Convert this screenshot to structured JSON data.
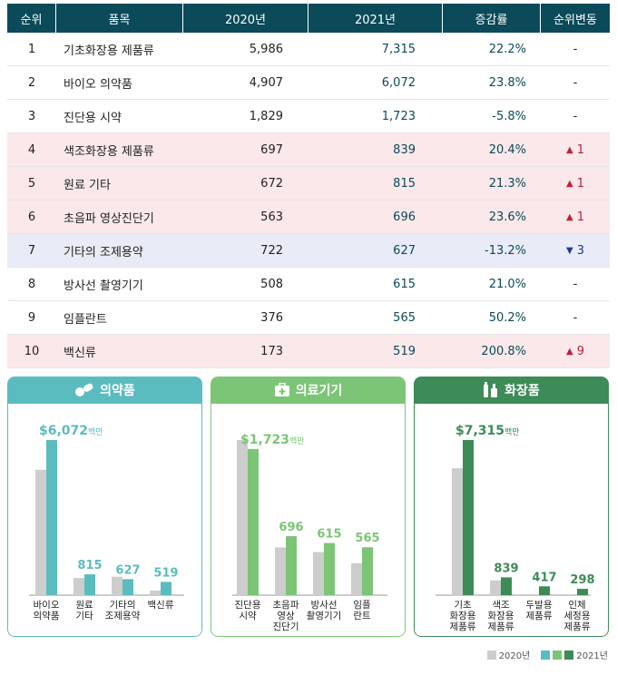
{
  "table": {
    "headers": [
      "순위",
      "품목",
      "2020년",
      "2021년",
      "증감률",
      "순위변동"
    ],
    "rows": [
      {
        "rank": "1",
        "name": "기초화장용 제품류",
        "y2020": "5,986",
        "y2021": "7,315",
        "rate": "22.2%",
        "change": "-",
        "dir": "none"
      },
      {
        "rank": "2",
        "name": "바이오 의약품",
        "y2020": "4,907",
        "y2021": "6,072",
        "rate": "23.8%",
        "change": "-",
        "dir": "none"
      },
      {
        "rank": "3",
        "name": "진단용 시약",
        "y2020": "1,829",
        "y2021": "1,723",
        "rate": "-5.8%",
        "change": "-",
        "dir": "none"
      },
      {
        "rank": "4",
        "name": "색조화장용 제품류",
        "y2020": "697",
        "y2021": "839",
        "rate": "20.4%",
        "change": "1",
        "dir": "up"
      },
      {
        "rank": "5",
        "name": "원료 기타",
        "y2020": "672",
        "y2021": "815",
        "rate": "21.3%",
        "change": "1",
        "dir": "up"
      },
      {
        "rank": "6",
        "name": "초음파 영상진단기",
        "y2020": "563",
        "y2021": "696",
        "rate": "23.6%",
        "change": "1",
        "dir": "up"
      },
      {
        "rank": "7",
        "name": "기타의 조제용약",
        "y2020": "722",
        "y2021": "627",
        "rate": "-13.2%",
        "change": "3",
        "dir": "down"
      },
      {
        "rank": "8",
        "name": "방사선 촬영기기",
        "y2020": "508",
        "y2021": "615",
        "rate": "21.0%",
        "change": "-",
        "dir": "none"
      },
      {
        "rank": "9",
        "name": "임플란트",
        "y2020": "376",
        "y2021": "565",
        "rate": "50.2%",
        "change": "-",
        "dir": "none"
      },
      {
        "rank": "10",
        "name": "백신류",
        "y2020": "173",
        "y2021": "519",
        "rate": "200.8%",
        "change": "9",
        "dir": "up"
      }
    ]
  },
  "colors": {
    "header_bg": "#0b4a58",
    "up_row": "#fbe8ea",
    "down_row": "#e9ebf6",
    "gray_bar": "#cdcdcd",
    "pharma": "#5bbcc0",
    "device": "#7cc576",
    "cosmetic": "#3d8b57"
  },
  "legend": {
    "y2020": "2020년",
    "y2021": "2021년"
  },
  "chart_data": [
    {
      "type": "bar",
      "title": "의약품",
      "icon": "pills-icon",
      "color": "#5bbcc0",
      "categories": [
        "바이오\n의약품",
        "원료\n기타",
        "기타의\n조제용약",
        "백신류"
      ],
      "series": [
        {
          "name": "2020년",
          "values": [
            4907,
            672,
            722,
            173
          ]
        },
        {
          "name": "2021년",
          "values": [
            6072,
            815,
            627,
            519
          ]
        }
      ],
      "data_labels": [
        "$6,072",
        "815",
        "627",
        "519"
      ],
      "unit": "백만"
    },
    {
      "type": "bar",
      "title": "의료기기",
      "icon": "medical-kit-icon",
      "color": "#7cc576",
      "categories": [
        "진단용\n시약",
        "초음파\n영상\n진단기",
        "방사선\n촬영기기",
        "임플\n란트"
      ],
      "series": [
        {
          "name": "2020년",
          "values": [
            1829,
            563,
            508,
            376
          ]
        },
        {
          "name": "2021년",
          "values": [
            1723,
            696,
            615,
            565
          ]
        }
      ],
      "data_labels": [
        "$1,723",
        "696",
        "615",
        "565"
      ],
      "unit": "백만"
    },
    {
      "type": "bar",
      "title": "화장품",
      "icon": "cosmetics-icon",
      "color": "#3d8b57",
      "categories": [
        "기초\n화장용\n제품류",
        "색조\n화장용\n제품류",
        "두발용\n제품류",
        "인체\n세정용\n제품류"
      ],
      "series": [
        {
          "name": "2020년",
          "values": [
            5986,
            697,
            null,
            null
          ]
        },
        {
          "name": "2021년",
          "values": [
            7315,
            839,
            417,
            298
          ]
        }
      ],
      "data_labels": [
        "$7,315",
        "839",
        "417",
        "298"
      ],
      "unit": "백만"
    }
  ]
}
